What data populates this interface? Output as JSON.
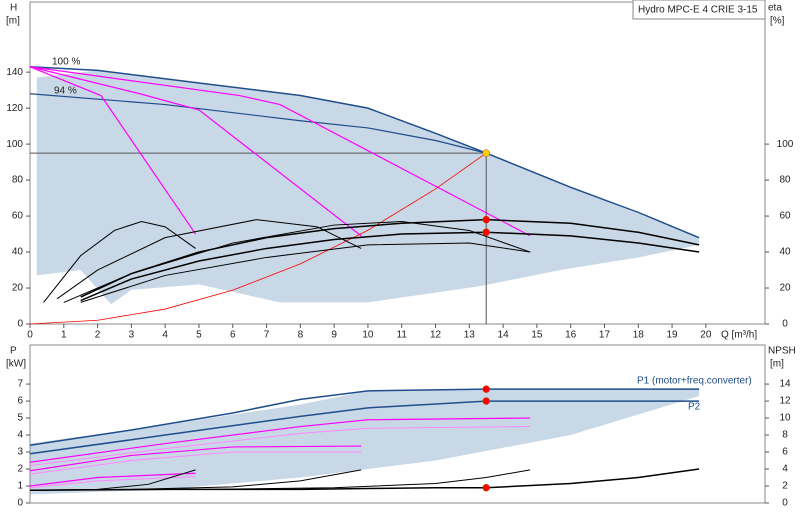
{
  "chart_data": [
    {
      "type": "line",
      "title": "Hydro MPC-E 4 CRIE 3-15",
      "ylabel": "H",
      "yunit": "[m]",
      "y2label": "eta",
      "y2unit": "[%]",
      "xlabel": "Q [m³/h]",
      "xlim": [
        0,
        21.75
      ],
      "xticks": [
        0,
        1,
        2,
        3,
        4,
        5,
        6,
        7,
        8,
        9,
        10,
        11,
        12,
        13,
        14,
        15,
        16,
        17,
        18,
        19,
        20
      ],
      "ylim": [
        0,
        179
      ],
      "yticks": [
        0,
        20,
        40,
        60,
        80,
        100,
        120,
        140
      ],
      "y2lim": [
        0,
        179
      ],
      "y2ticks": [
        0,
        20,
        40,
        60,
        80,
        100
      ],
      "annotations": [
        "100 %",
        "94 %"
      ],
      "area": {
        "color": "#c9d8e6",
        "x": [
          0.2,
          2,
          5,
          8,
          10,
          13.5,
          16,
          19.8,
          19.8,
          18,
          15.7,
          13.3,
          10,
          7.4,
          5,
          3,
          2.4,
          1.5,
          0.2
        ],
        "y": [
          137,
          141,
          134,
          127,
          120,
          95,
          76,
          48,
          44,
          37,
          30,
          21,
          12,
          12,
          22,
          19,
          11,
          30,
          27
        ]
      },
      "series": [
        {
          "color": "#1f4e8c",
          "width": 1.5,
          "x": [
            0,
            2,
            5,
            8,
            10,
            12,
            13.5,
            16,
            18,
            19.8
          ],
          "values": [
            143,
            141,
            134,
            127,
            120,
            106,
            95,
            76,
            62,
            48
          ]
        },
        {
          "color": "#1f4e8c",
          "width": 1.2,
          "x": [
            0,
            4,
            8,
            10,
            12,
            13.5
          ],
          "values": [
            128,
            122,
            113,
            109,
            102,
            95
          ]
        },
        {
          "color": "#ff00ff",
          "width": 1.2,
          "x": [
            0,
            2.1,
            4.9
          ],
          "values": [
            143,
            127,
            50
          ]
        },
        {
          "color": "#ff00ff",
          "width": 1.2,
          "x": [
            0,
            3.25,
            5,
            9.8
          ],
          "values": [
            143,
            128,
            119,
            49
          ]
        },
        {
          "color": "#ff00ff",
          "width": 1.2,
          "x": [
            0,
            6.2,
            7.4,
            14.8
          ],
          "values": [
            143,
            127,
            122,
            49
          ]
        },
        {
          "color": "#ff0000",
          "width": 0.8,
          "x": [
            0,
            2,
            4,
            6,
            8,
            10,
            12,
            13.5
          ],
          "values": [
            0,
            2.1,
            8.3,
            18.8,
            33.4,
            52.1,
            75.1,
            95
          ]
        },
        {
          "color": "#000000",
          "width": 1.5,
          "axis": "y2",
          "x": [
            1.5,
            3,
            5,
            7,
            9,
            11,
            13.5,
            16,
            18,
            19.8
          ],
          "values": [
            15,
            28,
            40,
            48,
            53,
            56,
            58,
            56,
            51,
            44
          ]
        },
        {
          "color": "#000000",
          "width": 1.5,
          "axis": "y2",
          "x": [
            1.5,
            3,
            5,
            7,
            9,
            11,
            13.5,
            16,
            18,
            19.8
          ],
          "values": [
            13,
            25,
            35,
            42,
            47,
            50,
            51,
            49,
            45,
            40
          ]
        },
        {
          "color": "#000000",
          "width": 1,
          "axis": "y2",
          "x": [
            0.4,
            1.5,
            2.5,
            3.3,
            4,
            4.9
          ],
          "values": [
            12,
            38,
            52,
            57,
            54,
            42
          ]
        },
        {
          "color": "#000000",
          "width": 1,
          "axis": "y2",
          "x": [
            0.8,
            2,
            4,
            6.7,
            8.5,
            9.8
          ],
          "values": [
            14,
            30,
            48,
            58,
            54,
            42
          ]
        },
        {
          "color": "#000000",
          "width": 1,
          "axis": "y2",
          "x": [
            1,
            3,
            6,
            9,
            11,
            13,
            14.8
          ],
          "values": [
            12,
            28,
            45,
            55,
            57,
            52,
            40
          ]
        },
        {
          "color": "#000000",
          "width": 1,
          "axis": "y2",
          "x": [
            1.5,
            4,
            7,
            10,
            13,
            14.8
          ],
          "values": [
            12,
            27,
            37,
            44,
            45,
            40
          ]
        }
      ],
      "points": [
        {
          "x": 13.5,
          "y": 95,
          "color": "#ffcc00",
          "guides": true
        },
        {
          "x": 13.5,
          "y": 58,
          "axis": "y2",
          "color": "#ff0000"
        },
        {
          "x": 13.5,
          "y": 51,
          "axis": "y2",
          "color": "#ff0000"
        }
      ]
    },
    {
      "type": "line",
      "ylabel": "P",
      "yunit": "[kW]",
      "y2label": "NPSH",
      "y2unit": "[m]",
      "xlim": [
        0,
        21.75
      ],
      "ylim": [
        0,
        9.3
      ],
      "yticks": [
        0,
        1,
        2,
        3,
        4,
        5,
        6,
        7
      ],
      "y2lim": [
        0,
        18.6
      ],
      "y2ticks": [
        0,
        2,
        4,
        6,
        8,
        10,
        12,
        14
      ],
      "annotations": [
        "P1 (motor+freq.converter)",
        "P2"
      ],
      "area": {
        "color": "#c9d8e6",
        "x": [
          0,
          4,
          8,
          10,
          13.5,
          19.8,
          19.8,
          16,
          12,
          8,
          4,
          0
        ],
        "y": [
          3.5,
          4.6,
          5.8,
          6.6,
          6.7,
          6.7,
          6.3,
          4.0,
          2.5,
          1.5,
          0.8,
          0.5
        ]
      },
      "series": [
        {
          "color": "#1f4e8c",
          "width": 1.5,
          "x": [
            0,
            3,
            6,
            8,
            10,
            13.5,
            16,
            19.8
          ],
          "values": [
            3.4,
            4.3,
            5.3,
            6.1,
            6.6,
            6.7,
            6.7,
            6.7
          ]
        },
        {
          "color": "#1f4e8c",
          "width": 1.5,
          "x": [
            0,
            4,
            8,
            10,
            13.5,
            19.8
          ],
          "values": [
            2.9,
            4.0,
            5.1,
            5.6,
            6.0,
            6.0
          ]
        },
        {
          "color": "#ff00ff",
          "width": 1.2,
          "x": [
            0,
            4,
            8,
            10,
            14.8
          ],
          "values": [
            2.4,
            3.5,
            4.5,
            4.9,
            5.0
          ]
        },
        {
          "color": "#ff88ff",
          "width": 1,
          "x": [
            0,
            4,
            8,
            10,
            14.8
          ],
          "values": [
            2.2,
            3.2,
            4.1,
            4.4,
            4.5
          ]
        },
        {
          "color": "#ff00ff",
          "width": 1.2,
          "x": [
            0,
            3,
            6,
            9.8
          ],
          "values": [
            1.9,
            2.8,
            3.3,
            3.35
          ]
        },
        {
          "color": "#ff88ff",
          "width": 1,
          "x": [
            0,
            3,
            6,
            9.8
          ],
          "values": [
            1.7,
            2.5,
            3.0,
            3.0
          ]
        },
        {
          "color": "#ff00ff",
          "width": 1.2,
          "x": [
            0,
            2,
            4.9
          ],
          "values": [
            1.0,
            1.5,
            1.75
          ]
        },
        {
          "color": "#ff88ff",
          "width": 1,
          "x": [
            0,
            2,
            4.9
          ],
          "values": [
            0.9,
            1.3,
            1.55
          ]
        },
        {
          "color": "#000000",
          "width": 1.5,
          "axis": "y2",
          "x": [
            0,
            4,
            8,
            10,
            12,
            13.5,
            16,
            18,
            19.8
          ],
          "values": [
            1.5,
            1.6,
            1.6,
            1.7,
            1.8,
            1.8,
            2.3,
            3.0,
            4.0
          ]
        },
        {
          "color": "#000000",
          "width": 1,
          "axis": "y2",
          "x": [
            0,
            5,
            9,
            12,
            13.5,
            14.8
          ],
          "values": [
            1.5,
            1.6,
            1.8,
            2.3,
            3.0,
            3.9
          ]
        },
        {
          "color": "#000000",
          "width": 1,
          "axis": "y2",
          "x": [
            0,
            3,
            6,
            8,
            9.8
          ],
          "values": [
            1.5,
            1.6,
            1.9,
            2.6,
            3.9
          ]
        },
        {
          "color": "#000000",
          "width": 1,
          "axis": "y2",
          "x": [
            0,
            2,
            3.5,
            4.9
          ],
          "values": [
            1.5,
            1.6,
            2.2,
            3.9
          ]
        }
      ],
      "points": [
        {
          "x": 13.5,
          "y": 6.7,
          "color": "#ff0000"
        },
        {
          "x": 13.5,
          "y": 6.0,
          "color": "#ff0000"
        },
        {
          "x": 13.5,
          "y": 1.8,
          "axis": "y2",
          "color": "#ff0000"
        }
      ]
    }
  ]
}
